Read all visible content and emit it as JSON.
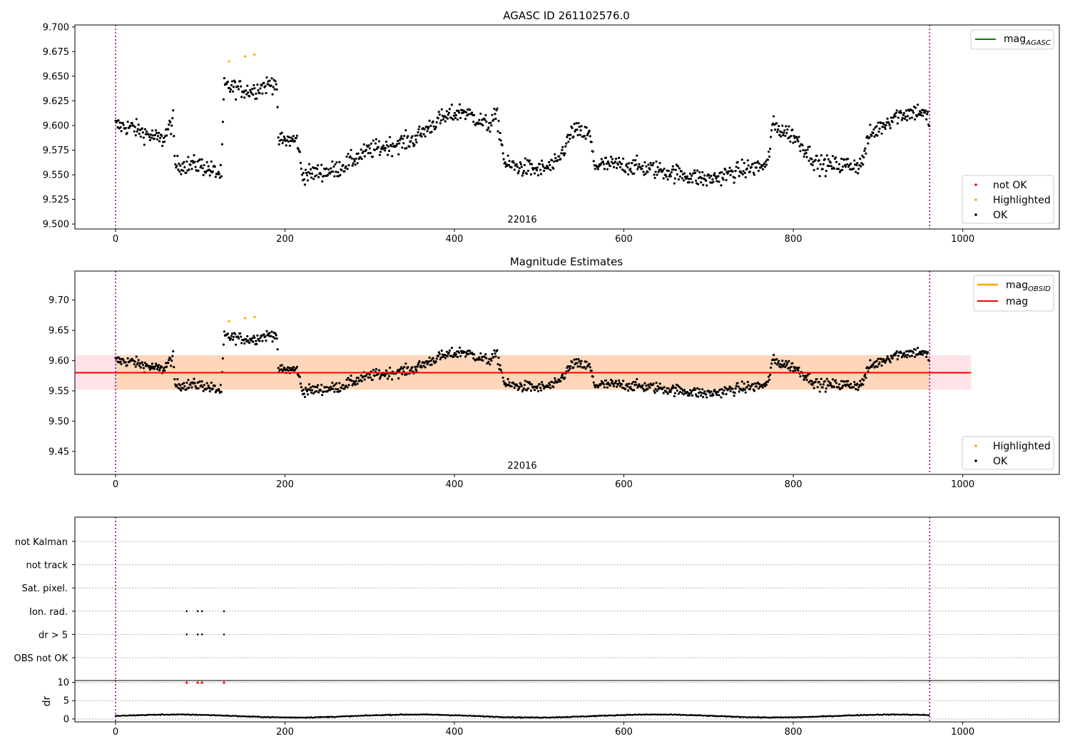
{
  "chart_data": [
    {
      "type": "scatter",
      "title": "AGASC ID 261102576.0",
      "xlim": [
        -48,
        1114
      ],
      "ylim": [
        9.495,
        9.702
      ],
      "xticks": [
        "0",
        "200",
        "400",
        "600",
        "800",
        "1000"
      ],
      "yticks": [
        "9.500",
        "9.525",
        "9.550",
        "9.575",
        "9.600",
        "9.625",
        "9.650",
        "9.675",
        "9.700"
      ],
      "obsid_label": "22016",
      "obsid_bounds": [
        0,
        961
      ],
      "legend_top": [
        {
          "label": "mag",
          "sub": "AGASC",
          "color": "#008000"
        }
      ],
      "legend_bottom": [
        {
          "label": "not OK",
          "color": "#ff0000"
        },
        {
          "label": "Highlighted",
          "color": "#ffa500"
        },
        {
          "label": "OK",
          "color": "#000000"
        }
      ],
      "series": [
        {
          "name": "OK",
          "color": "#000000",
          "trend": [
            [
              0,
              9.6
            ],
            [
              20,
              9.598
            ],
            [
              40,
              9.59
            ],
            [
              55,
              9.585
            ],
            [
              68,
              9.605
            ],
            [
              70,
              9.56
            ],
            [
              100,
              9.56
            ],
            [
              125,
              9.55
            ],
            [
              128,
              9.64
            ],
            [
              160,
              9.635
            ],
            [
              190,
              9.645
            ],
            [
              192,
              9.585
            ],
            [
              215,
              9.585
            ],
            [
              220,
              9.55
            ],
            [
              260,
              9.555
            ],
            [
              300,
              9.575
            ],
            [
              350,
              9.585
            ],
            [
              380,
              9.605
            ],
            [
              410,
              9.615
            ],
            [
              440,
              9.6
            ],
            [
              450,
              9.61
            ],
            [
              460,
              9.56
            ],
            [
              500,
              9.555
            ],
            [
              520,
              9.56
            ],
            [
              540,
              9.595
            ],
            [
              560,
              9.59
            ],
            [
              565,
              9.56
            ],
            [
              600,
              9.56
            ],
            [
              640,
              9.555
            ],
            [
              700,
              9.545
            ],
            [
              740,
              9.555
            ],
            [
              770,
              9.56
            ],
            [
              775,
              9.6
            ],
            [
              800,
              9.59
            ],
            [
              830,
              9.56
            ],
            [
              880,
              9.56
            ],
            [
              890,
              9.59
            ],
            [
              920,
              9.61
            ],
            [
              950,
              9.615
            ],
            [
              961,
              9.605
            ]
          ],
          "spread": 0.012
        },
        {
          "name": "Highlighted",
          "color": "#ffa500",
          "points": [
            [
              134,
              9.665
            ],
            [
              153,
              9.67
            ],
            [
              164,
              9.672
            ]
          ]
        }
      ]
    },
    {
      "type": "scatter",
      "title": "Magnitude Estimates",
      "xlim": [
        -48,
        1114
      ],
      "ylim": [
        9.412,
        9.748
      ],
      "xticks": [
        "0",
        "200",
        "400",
        "600",
        "800",
        "1000"
      ],
      "yticks": [
        "9.45",
        "9.50",
        "9.55",
        "9.60",
        "9.65",
        "9.70"
      ],
      "obsid_label": "22016",
      "obsid_bounds": [
        0,
        961
      ],
      "mag": 9.58,
      "mag_band": [
        9.552,
        9.609
      ],
      "mag_extent": [
        -48,
        1010
      ],
      "mag_obsid_extent": [
        0,
        961
      ],
      "legend_top": [
        {
          "label": "mag",
          "sub": "OBSID",
          "color": "#ffa500"
        },
        {
          "label": "mag",
          "sub": "",
          "color": "#ff0000"
        }
      ],
      "legend_bottom": [
        {
          "label": "Highlighted",
          "color": "#ffa500"
        },
        {
          "label": "OK",
          "color": "#000000"
        }
      ]
    },
    {
      "type": "scatter",
      "title": "",
      "xlim": [
        -48,
        1114
      ],
      "xticks": [
        "0",
        "200",
        "400",
        "600",
        "800",
        "1000"
      ],
      "flag_rows": [
        "not Kalman",
        "not track",
        "Sat. pixel.",
        "Ion. rad.",
        "dr > 5",
        "OBS not OK"
      ],
      "flag_points": {
        "Ion. rad.": [
          84,
          97,
          102,
          128
        ],
        "dr > 5": [
          84,
          97,
          102,
          128
        ]
      },
      "dr": {
        "ylabel": "dr",
        "yticks": [
          "0",
          "5",
          "10"
        ],
        "ylim": [
          -0.8,
          10.5
        ],
        "outliers": [
          84,
          97,
          102,
          128
        ],
        "outlier_value": 10,
        "typical": 0.8
      }
    }
  ],
  "icons": {
    "outlier_marker": "red-triangle-icon"
  }
}
